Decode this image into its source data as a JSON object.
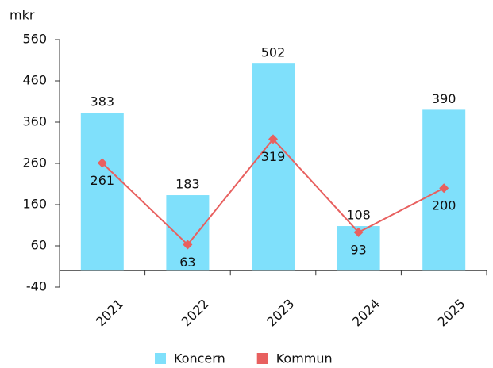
{
  "chart_data": {
    "type": "bar-line",
    "y_label": "mkr",
    "categories": [
      "2021",
      "2022",
      "2023",
      "2024",
      "2025"
    ],
    "series": [
      {
        "name": "Koncern",
        "type": "bar",
        "color": "#7fe0fb",
        "values": [
          383,
          183,
          502,
          108,
          390
        ]
      },
      {
        "name": "Kommun",
        "type": "line",
        "color": "#e8605f",
        "values": [
          261,
          63,
          319,
          93,
          200
        ]
      }
    ],
    "ylim": [
      -40,
      560
    ],
    "yticks": [
      -40,
      60,
      160,
      260,
      360,
      460,
      560
    ],
    "grid": false
  }
}
